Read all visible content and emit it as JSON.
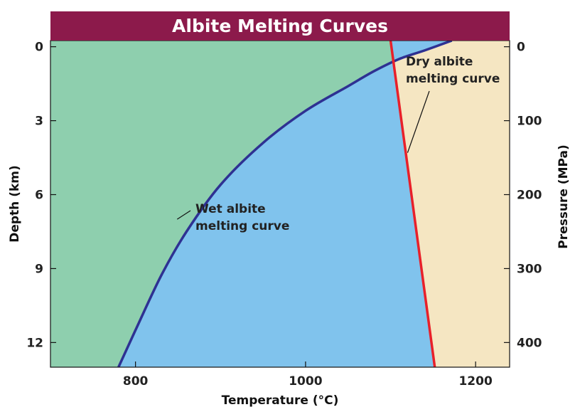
{
  "chart_data": {
    "type": "line",
    "title": "Albite Melting Curves",
    "xlabel": "Temperature (°C)",
    "ylabel": "Depth (km)",
    "ylabel_right": "Pressure (MPa)",
    "xlim": [
      700,
      1240
    ],
    "ylim": [
      -0.25,
      13
    ],
    "x_ticks": [
      800,
      1000,
      1200
    ],
    "y_ticks": [
      0,
      3,
      6,
      9,
      12
    ],
    "y_ticks_right": [
      0,
      100,
      200,
      300,
      400
    ],
    "series": [
      {
        "id": "wet",
        "color": "#2e3192",
        "x": [
          780,
          800,
          830,
          860,
          900,
          950,
          1000,
          1050,
          1080,
          1110,
          1140,
          1172
        ],
        "y": [
          13,
          11.5,
          9.3,
          7.5,
          5.6,
          3.9,
          2.6,
          1.6,
          1.0,
          0.5,
          0.15,
          -0.25
        ]
      },
      {
        "id": "dry",
        "color": "#e8202a",
        "x": [
          1100,
          1152
        ],
        "y": [
          -0.25,
          13
        ]
      }
    ],
    "regions": [
      {
        "id": "solid",
        "color": "#8ecfae"
      },
      {
        "id": "melt",
        "color": "#80c3ed"
      },
      {
        "id": "dry-side",
        "color": "#f5e6c2"
      }
    ],
    "annotations": [
      {
        "lines": [
          "Wet albite",
          "melting curve"
        ],
        "target": [
          849,
          7.0
        ]
      },
      {
        "lines": [
          "Dry albite",
          "melting curve"
        ],
        "target": [
          1120,
          4.3
        ]
      }
    ],
    "colors": {
      "title_bar": "#8c1a4b",
      "frame": "#111111"
    }
  }
}
